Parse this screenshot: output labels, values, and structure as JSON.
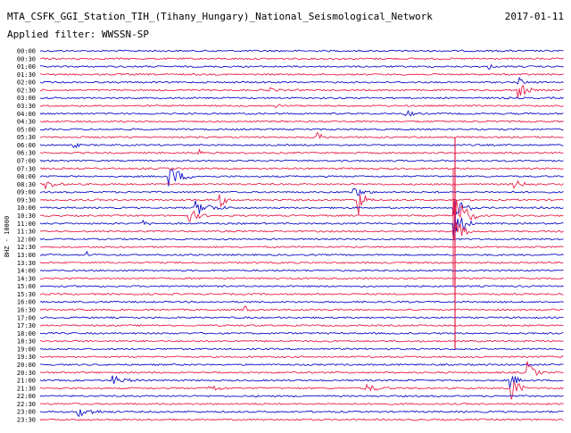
{
  "header": {
    "title": "MTA_CSFK_GGI_Station_TIH_(Tihany_Hungary)_National_Seismological_Network",
    "date": "2017-01-11",
    "filter": "Applied filter: WWSSN-SP"
  },
  "axis": {
    "label": "BHZ - 10000"
  },
  "rows": [
    "00:00",
    "00:30",
    "01:00",
    "01:30",
    "02:00",
    "02:30",
    "03:00",
    "03:30",
    "04:00",
    "04:30",
    "05:00",
    "05:30",
    "06:00",
    "06:30",
    "07:00",
    "07:30",
    "08:00",
    "08:30",
    "09:00",
    "09:30",
    "10:00",
    "10:30",
    "11:00",
    "11:30",
    "12:00",
    "12:30",
    "13:00",
    "13:30",
    "14:00",
    "14:30",
    "15:00",
    "15:30",
    "16:00",
    "16:30",
    "17:00",
    "17:30",
    "18:00",
    "18:30",
    "19:00",
    "19:30",
    "20:00",
    "20:30",
    "21:00",
    "21:30",
    "22:00",
    "22:30",
    "23:00",
    "23:30"
  ]
}
